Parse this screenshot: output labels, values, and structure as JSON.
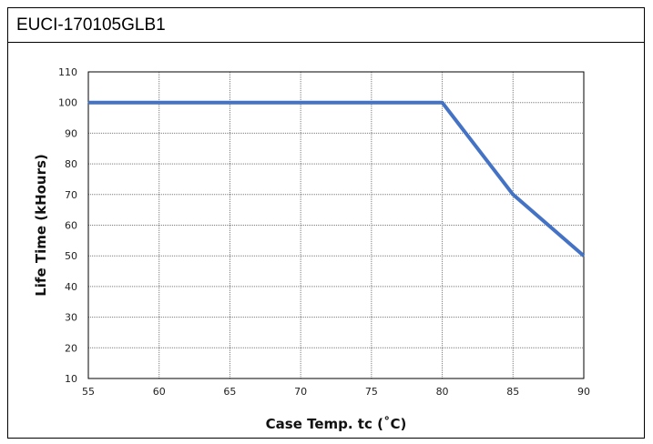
{
  "header": {
    "title": "EUCI-170105GLB1"
  },
  "chart_data": {
    "type": "line",
    "xlabel": "Case Temp. tc (˚C)",
    "ylabel": "Life Time (kHours)",
    "xlim": [
      55,
      90
    ],
    "ylim": [
      10,
      110
    ],
    "x_ticks": [
      55,
      60,
      65,
      70,
      75,
      80,
      85,
      90
    ],
    "y_ticks": [
      10,
      20,
      30,
      40,
      50,
      60,
      70,
      80,
      90,
      100,
      110
    ],
    "grid": true,
    "series": [
      {
        "x": [
          55,
          80,
          85,
          90
        ],
        "y": [
          100,
          100,
          70,
          50
        ],
        "color": "#4472C4"
      }
    ]
  }
}
